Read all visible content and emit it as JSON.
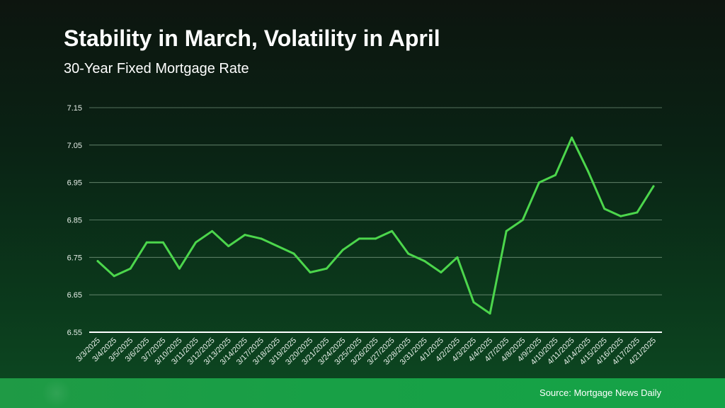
{
  "title": "Stability in March, Volatility in April",
  "subtitle": "30-Year Fixed Mortgage Rate",
  "source": "Source: Mortgage News Daily",
  "colors": {
    "line": "#4cd64c",
    "grid": "#6f8f77",
    "axis": "#ffffff",
    "footer": "#1a9e46"
  },
  "chart_data": {
    "type": "line",
    "title": "Stability in March, Volatility in April",
    "subtitle": "30-Year Fixed Mortgage Rate",
    "ylim": [
      6.55,
      7.15
    ],
    "yticks": [
      "7.15",
      "7.05",
      "6.95",
      "6.85",
      "6.75",
      "6.65",
      "6.55"
    ],
    "grid": true,
    "categories": [
      "3/3/2025",
      "3/4/2025",
      "3/5/2025",
      "3/6/2025",
      "3/7/2025",
      "3/10/2025",
      "3/11/2025",
      "3/12/2025",
      "3/13/2025",
      "3/14/2025",
      "3/17/2025",
      "3/18/2025",
      "3/19/2025",
      "3/20/2025",
      "3/21/2025",
      "3/24/2025",
      "3/25/2025",
      "3/26/2025",
      "3/27/2025",
      "3/28/2025",
      "3/31/2025",
      "4/1/2025",
      "4/2/2025",
      "4/3/2025",
      "4/4/2025",
      "4/7/2025",
      "4/8/2025",
      "4/9/2025",
      "4/10/2025",
      "4/11/2025",
      "4/14/2025",
      "4/15/2025",
      "4/16/2025",
      "4/17/2025",
      "4/21/2025"
    ],
    "values": [
      6.74,
      6.7,
      6.72,
      6.79,
      6.79,
      6.72,
      6.79,
      6.82,
      6.78,
      6.81,
      6.8,
      6.78,
      6.76,
      6.71,
      6.72,
      6.77,
      6.8,
      6.8,
      6.82,
      6.76,
      6.74,
      6.71,
      6.75,
      6.63,
      6.6,
      6.82,
      6.85,
      6.95,
      6.97,
      7.07,
      6.98,
      6.88,
      6.86,
      6.87,
      6.94
    ]
  }
}
